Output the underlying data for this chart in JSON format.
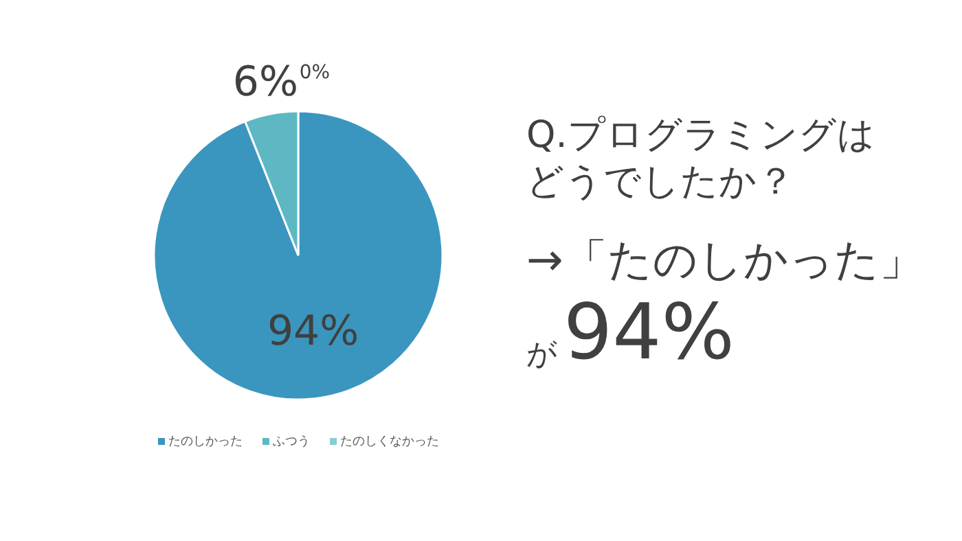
{
  "chart_data": {
    "type": "pie",
    "title": "Q.プログラミングはどうでしたか？",
    "categories": [
      "たのしかった",
      "ふつう",
      "たのしくなかった"
    ],
    "values": [
      94,
      6,
      0
    ],
    "colors": [
      "#3a96bf",
      "#5db8c3",
      "#86cfd0"
    ],
    "value_labels": [
      "94%",
      "6%",
      "0%"
    ],
    "legend": "bottom",
    "annotations": [
      "→「たのしかった」",
      "が",
      "94%"
    ]
  }
}
